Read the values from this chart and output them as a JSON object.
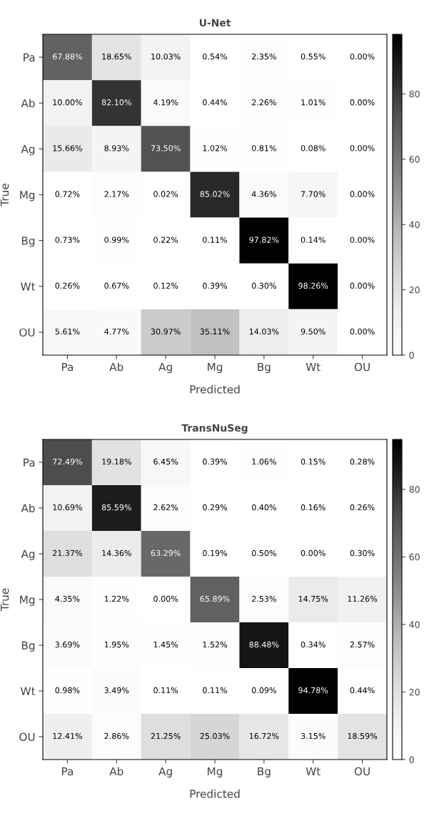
{
  "chart_data": [
    {
      "type": "heatmap",
      "title": "U-Net",
      "xlabel": "Predicted",
      "ylabel": "True",
      "categories": [
        "Pa",
        "Ab",
        "Ag",
        "Mg",
        "Bg",
        "Wt",
        "OU"
      ],
      "y_categories": [
        "Pa",
        "Ab",
        "Ag",
        "Mg",
        "Bg",
        "Wt",
        "OU"
      ],
      "cells": [
        [
          67.88,
          18.65,
          10.03,
          0.54,
          2.35,
          0.55,
          0.0
        ],
        [
          10.0,
          82.1,
          4.19,
          0.44,
          2.26,
          1.01,
          0.0
        ],
        [
          15.66,
          8.93,
          73.5,
          1.02,
          0.81,
          0.08,
          0.0
        ],
        [
          0.72,
          2.17,
          0.02,
          85.02,
          4.36,
          7.7,
          0.0
        ],
        [
          0.73,
          0.99,
          0.22,
          0.11,
          97.82,
          0.14,
          0.0
        ],
        [
          0.26,
          0.67,
          0.12,
          0.39,
          0.3,
          98.26,
          0.0
        ],
        [
          5.61,
          4.77,
          30.97,
          35.11,
          14.03,
          9.5,
          0.0
        ]
      ],
      "cell_labels": [
        [
          "67.88%",
          "18.65%",
          "10.03%",
          "0.54%",
          "2.35%",
          "0.55%",
          "0.00%"
        ],
        [
          "10.00%",
          "82.10%",
          "4.19%",
          "0.44%",
          "2.26%",
          "1.01%",
          "0.00%"
        ],
        [
          "15.66%",
          "8.93%",
          "73.50%",
          "1.02%",
          "0.81%",
          "0.08%",
          "0.00%"
        ],
        [
          "0.72%",
          "2.17%",
          "0.02%",
          "85.02%",
          "4.36%",
          "7.70%",
          "0.00%"
        ],
        [
          "0.73%",
          "0.99%",
          "0.22%",
          "0.11%",
          "97.82%",
          "0.14%",
          "0.00%"
        ],
        [
          "0.26%",
          "0.67%",
          "0.12%",
          "0.39%",
          "0.30%",
          "98.26%",
          "0.00%"
        ],
        [
          "5.61%",
          "4.77%",
          "30.97%",
          "35.11%",
          "14.03%",
          "9.50%",
          "0.00%"
        ]
      ],
      "clim": [
        0,
        98.26
      ],
      "cticks": [
        0,
        20,
        40,
        60,
        80
      ]
    },
    {
      "type": "heatmap",
      "title": "TransNuSeg",
      "xlabel": "Predicted",
      "ylabel": "True",
      "categories": [
        "Pa",
        "Ab",
        "Ag",
        "Mg",
        "Bg",
        "Wt",
        "OU"
      ],
      "y_categories": [
        "Pa",
        "Ab",
        "Ag",
        "Mg",
        "Bg",
        "Wt",
        "OU"
      ],
      "cells": [
        [
          72.49,
          19.18,
          6.45,
          0.39,
          1.06,
          0.15,
          0.28
        ],
        [
          10.69,
          85.59,
          2.62,
          0.29,
          0.4,
          0.16,
          0.26
        ],
        [
          21.37,
          14.36,
          63.29,
          0.19,
          0.5,
          0.0,
          0.3
        ],
        [
          4.35,
          1.22,
          0.0,
          65.89,
          2.53,
          14.75,
          11.26
        ],
        [
          3.69,
          1.95,
          1.45,
          1.52,
          88.48,
          0.34,
          2.57
        ],
        [
          0.98,
          3.49,
          0.11,
          0.11,
          0.09,
          94.78,
          0.44
        ],
        [
          12.41,
          2.86,
          21.25,
          25.03,
          16.72,
          3.15,
          18.59
        ]
      ],
      "cell_labels": [
        [
          "72.49%",
          "19.18%",
          "6.45%",
          "0.39%",
          "1.06%",
          "0.15%",
          "0.28%"
        ],
        [
          "10.69%",
          "85.59%",
          "2.62%",
          "0.29%",
          "0.40%",
          "0.16%",
          "0.26%"
        ],
        [
          "21.37%",
          "14.36%",
          "63.29%",
          "0.19%",
          "0.50%",
          "0.00%",
          "0.30%"
        ],
        [
          "4.35%",
          "1.22%",
          "0.00%",
          "65.89%",
          "2.53%",
          "14.75%",
          "11.26%"
        ],
        [
          "3.69%",
          "1.95%",
          "1.45%",
          "1.52%",
          "88.48%",
          "0.34%",
          "2.57%"
        ],
        [
          "0.98%",
          "3.49%",
          "0.11%",
          "0.11%",
          "0.09%",
          "94.78%",
          "0.44%"
        ],
        [
          "12.41%",
          "2.86%",
          "21.25%",
          "25.03%",
          "16.72%",
          "3.15%",
          "18.59%"
        ]
      ],
      "clim": [
        0,
        94.78
      ],
      "cticks": [
        0,
        20,
        40,
        60,
        80
      ]
    }
  ]
}
